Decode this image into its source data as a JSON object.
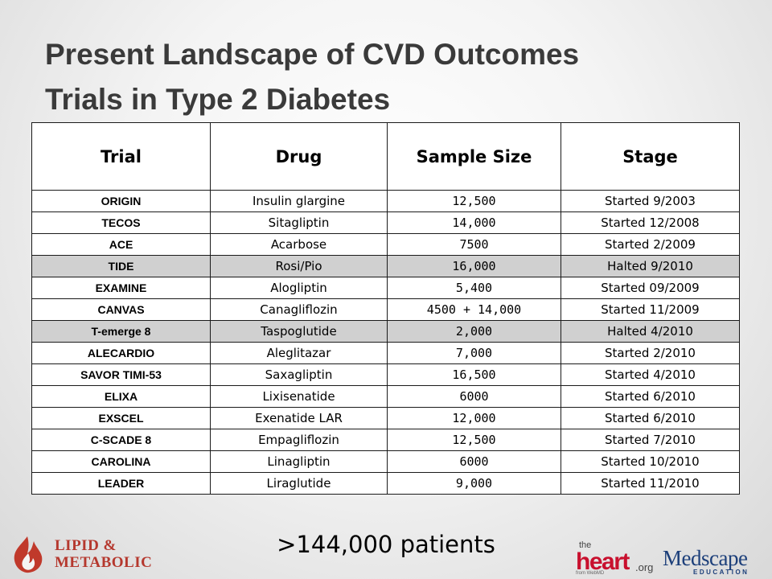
{
  "slide": {
    "title_line1": "Present Landscape of CVD Outcomes",
    "title_line2": "Trials in Type 2 Diabetes",
    "total": ">144,000 patients"
  },
  "table": {
    "headers": [
      "Trial",
      "Drug",
      "Sample Size",
      "Stage"
    ],
    "rows": [
      {
        "trial": "ORIGIN",
        "drug": "Insulin glargine",
        "size": "12,500",
        "stage": "Started 9/2003",
        "halted": false
      },
      {
        "trial": "TECOS",
        "drug": "Sitagliptin",
        "size": "14,000",
        "stage": "Started 12/2008",
        "halted": false
      },
      {
        "trial": "ACE",
        "drug": "Acarbose",
        "size": "7500",
        "stage": "Started 2/2009",
        "halted": false
      },
      {
        "trial": "TIDE",
        "drug": "Rosi/Pio",
        "size": "16,000",
        "stage": "Halted 9/2010",
        "halted": true
      },
      {
        "trial": "EXAMINE",
        "drug": "Alogliptin",
        "size": "5,400",
        "stage": "Started 09/2009",
        "halted": false
      },
      {
        "trial": "CANVAS",
        "drug": "Canagliflozin",
        "size": "4500 + 14,000",
        "stage": "Started 11/2009",
        "halted": false
      },
      {
        "trial": "T-emerge 8",
        "drug": "Taspoglutide",
        "size": "2,000",
        "stage": "Halted 4/2010",
        "halted": true
      },
      {
        "trial": "ALECARDIO",
        "drug": "Aleglitazar",
        "size": "7,000",
        "stage": "Started 2/2010",
        "halted": false
      },
      {
        "trial": "SAVOR TIMI-53",
        "drug": "Saxagliptin",
        "size": "16,500",
        "stage": "Started 4/2010",
        "halted": false
      },
      {
        "trial": "ELIXA",
        "drug": "Lixisenatide",
        "size": "6000",
        "stage": "Started 6/2010",
        "halted": false
      },
      {
        "trial": "EXSCEL",
        "drug": "Exenatide LAR",
        "size": "12,000",
        "stage": "Started 6/2010",
        "halted": false
      },
      {
        "trial": "C-SCADE 8",
        "drug": "Empagliflozin",
        "size": "12,500",
        "stage": "Started 7/2010",
        "halted": false
      },
      {
        "trial": "CAROLINA",
        "drug": "Linagliptin",
        "size": "6000",
        "stage": "Started 10/2010",
        "halted": false
      },
      {
        "trial": "LEADER",
        "drug": "Liraglutide",
        "size": "9,000",
        "stage": "Started 11/2010",
        "halted": false
      }
    ]
  },
  "logos": {
    "lipid": {
      "line1": "LIPID &",
      "line2": "METABOLIC",
      "icon": "flame-icon",
      "color": "#b5382e"
    },
    "theheart": {
      "the": "the",
      "heart": "heart",
      "org": ".org",
      "from": "from WebMD",
      "color": "#c8102e"
    },
    "medscape": {
      "name": "Medscape",
      "sub": "EDUCATION",
      "color": "#1c3f7a"
    }
  }
}
